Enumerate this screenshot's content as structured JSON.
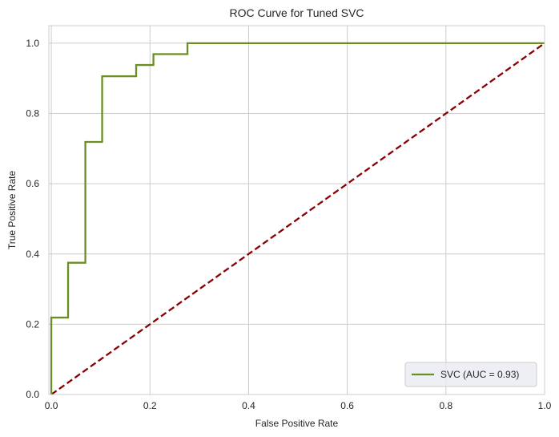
{
  "chart_data": {
    "type": "line",
    "title": "ROC Curve for Tuned SVC",
    "xlabel": "False Positive Rate",
    "ylabel": "True Positive Rate",
    "xlim": [
      -0.005,
      1.0
    ],
    "ylim": [
      0.0,
      1.05
    ],
    "xticks": [
      0.0,
      0.2,
      0.4,
      0.6,
      0.8,
      1.0
    ],
    "xtick_labels": [
      "0.0",
      "0.2",
      "0.4",
      "0.6",
      "0.8",
      "1.0"
    ],
    "yticks": [
      0.0,
      0.2,
      0.4,
      0.6,
      0.8,
      1.0
    ],
    "ytick_labels": [
      "0.0",
      "0.2",
      "0.4",
      "0.6",
      "0.8",
      "1.0"
    ],
    "grid": true,
    "legend_position": "lower-right",
    "series": [
      {
        "name": "SVC (AUC = 0.93)",
        "color": "#6b8e23",
        "style": "solid",
        "x": [
          0.0,
          0.0,
          0.034,
          0.034,
          0.069,
          0.069,
          0.103,
          0.103,
          0.172,
          0.172,
          0.207,
          0.207,
          0.276,
          0.276,
          1.0
        ],
        "y": [
          0.0,
          0.219,
          0.219,
          0.375,
          0.375,
          0.719,
          0.719,
          0.906,
          0.906,
          0.938,
          0.938,
          0.969,
          0.969,
          1.0,
          1.0
        ]
      },
      {
        "color": "#8b0000",
        "style": "dashed",
        "x": [
          0.0,
          1.0
        ],
        "y": [
          0.0,
          1.0
        ]
      }
    ]
  }
}
